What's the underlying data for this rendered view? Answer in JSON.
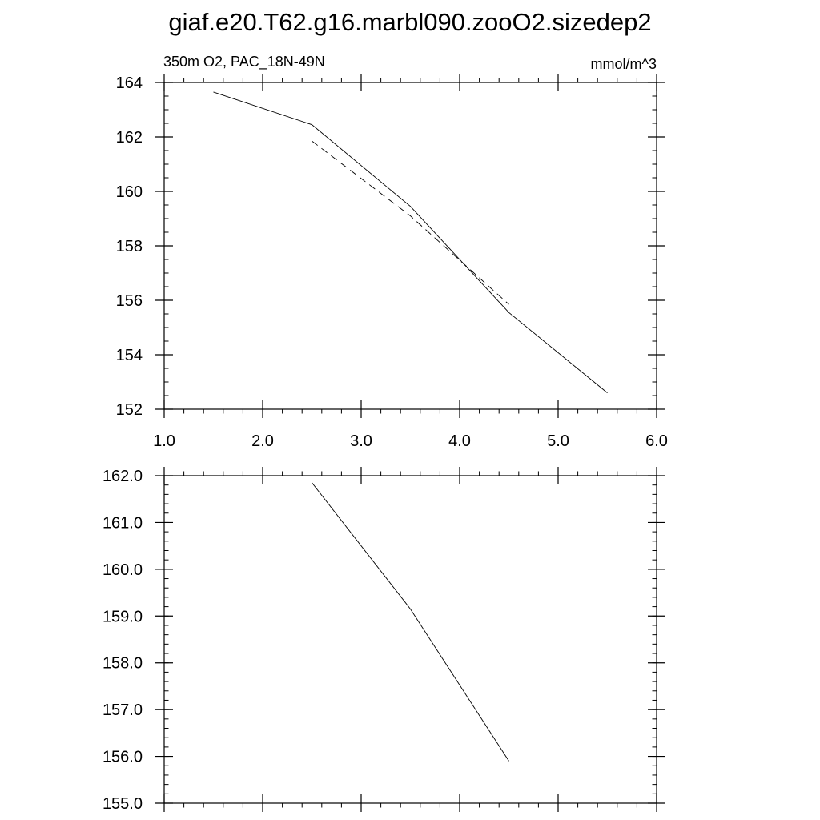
{
  "title": "giaf.e20.T62.g16.marbl090.zooO2.sizedep2",
  "chart_data": [
    {
      "type": "line",
      "left_label": "350m O2, PAC_18N-49N",
      "right_label": "mmol/m^3",
      "xlim": [
        1.0,
        6.0
      ],
      "ylim": [
        152,
        164
      ],
      "x_ticks": [
        1.0,
        2.0,
        3.0,
        4.0,
        5.0,
        6.0
      ],
      "x_tick_labels": [
        "1.0",
        "2.0",
        "3.0",
        "4.0",
        "5.0",
        "6.0"
      ],
      "y_ticks": [
        152,
        154,
        156,
        158,
        160,
        162,
        164
      ],
      "y_tick_labels": [
        "152",
        "154",
        "156",
        "158",
        "160",
        "162",
        "164"
      ],
      "y_minor_step": 0.5,
      "x_minor_step": 0.2,
      "grid": false,
      "series": [
        {
          "style": "solid",
          "x": [
            1.5,
            2.5,
            3.5,
            4.5,
            5.5
          ],
          "y": [
            163.65,
            162.45,
            159.45,
            155.55,
            152.6
          ]
        },
        {
          "style": "dashed",
          "x": [
            2.5,
            3.5,
            4.5
          ],
          "y": [
            161.85,
            159.1,
            155.85
          ]
        }
      ]
    },
    {
      "type": "line",
      "xlim": [
        1.0,
        6.0
      ],
      "ylim": [
        155.0,
        162.0
      ],
      "x_ticks": [
        1.0,
        2.0,
        3.0,
        4.0,
        5.0,
        6.0
      ],
      "y_ticks": [
        155.0,
        156.0,
        157.0,
        158.0,
        159.0,
        160.0,
        161.0,
        162.0
      ],
      "y_tick_labels": [
        "155.0",
        "156.0",
        "157.0",
        "158.0",
        "159.0",
        "160.0",
        "161.0",
        "162.0"
      ],
      "y_minor_step": 0.2,
      "x_minor_step": 0.2,
      "grid": false,
      "series": [
        {
          "style": "solid",
          "x": [
            2.5,
            3.5,
            4.5
          ],
          "y": [
            161.85,
            159.15,
            155.9
          ]
        }
      ]
    }
  ]
}
